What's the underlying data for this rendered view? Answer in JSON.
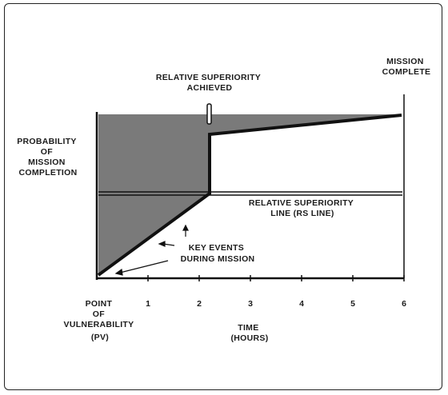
{
  "diagram": {
    "marker_top_label": [
      "RELATIVE SUPERIORITY",
      "ACHIEVED"
    ],
    "mission_label": [
      "MISSION",
      "COMPLETE"
    ],
    "y_axis_label": [
      "PROBABILITY",
      "OF",
      "MISSION",
      "COMPLETION"
    ],
    "rs_line_label": [
      "RELATIVE SUPERIORITY",
      "LINE (RS LINE)"
    ],
    "key_events_label": [
      "KEY EVENTS",
      "DURING MISSION"
    ],
    "origin_label": [
      "POINT",
      "OF",
      "VULNERABILITY",
      "(PV)"
    ],
    "x_axis_title": [
      "TIME",
      "(HOURS)"
    ],
    "x_ticks": [
      "1",
      "2",
      "3",
      "4",
      "5",
      "6"
    ],
    "colors": {
      "fill": "#7a7a7a",
      "line": "#111111",
      "background": "#ffffff"
    }
  }
}
